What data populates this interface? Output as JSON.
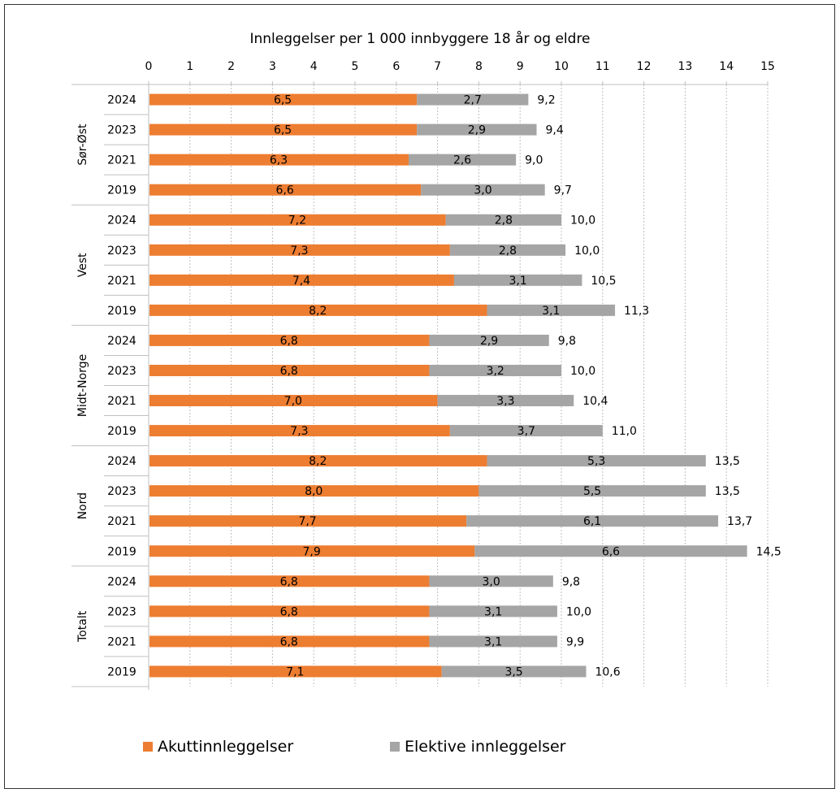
{
  "chart_data": {
    "type": "bar",
    "orientation": "horizontal",
    "stacked": true,
    "title": "Innleggelser per 1 000 innbyggere 18 år og eldre",
    "xlim": [
      0,
      15
    ],
    "xticks": [
      0,
      1,
      2,
      3,
      4,
      5,
      6,
      7,
      8,
      9,
      10,
      11,
      12,
      13,
      14,
      15
    ],
    "grid": true,
    "legend_position": "bottom",
    "series": [
      {
        "name": "Akuttinnleggelser",
        "color": "#ED7D31"
      },
      {
        "name": "Elektive innleggelser",
        "color": "#A5A5A5"
      }
    ],
    "groups": [
      {
        "name": "Sør-Øst",
        "rows": [
          {
            "year": "2024",
            "acute": 6.5,
            "elective": 2.7,
            "total": "9,2",
            "acute_label": "6,5",
            "elective_label": "2,7"
          },
          {
            "year": "2023",
            "acute": 6.5,
            "elective": 2.9,
            "total": "9,4",
            "acute_label": "6,5",
            "elective_label": "2,9"
          },
          {
            "year": "2021",
            "acute": 6.3,
            "elective": 2.6,
            "total": "9,0",
            "acute_label": "6,3",
            "elective_label": "2,6"
          },
          {
            "year": "2019",
            "acute": 6.6,
            "elective": 3.0,
            "total": "9,7",
            "acute_label": "6,6",
            "elective_label": "3,0"
          }
        ]
      },
      {
        "name": "Vest",
        "rows": [
          {
            "year": "2024",
            "acute": 7.2,
            "elective": 2.8,
            "total": "10,0",
            "acute_label": "7,2",
            "elective_label": "2,8"
          },
          {
            "year": "2023",
            "acute": 7.3,
            "elective": 2.8,
            "total": "10,0",
            "acute_label": "7,3",
            "elective_label": "2,8"
          },
          {
            "year": "2021",
            "acute": 7.4,
            "elective": 3.1,
            "total": "10,5",
            "acute_label": "7,4",
            "elective_label": "3,1"
          },
          {
            "year": "2019",
            "acute": 8.2,
            "elective": 3.1,
            "total": "11,3",
            "acute_label": "8,2",
            "elective_label": "3,1"
          }
        ]
      },
      {
        "name": "Midt-Norge",
        "rows": [
          {
            "year": "2024",
            "acute": 6.8,
            "elective": 2.9,
            "total": "9,8",
            "acute_label": "6,8",
            "elective_label": "2,9"
          },
          {
            "year": "2023",
            "acute": 6.8,
            "elective": 3.2,
            "total": "10,0",
            "acute_label": "6,8",
            "elective_label": "3,2"
          },
          {
            "year": "2021",
            "acute": 7.0,
            "elective": 3.3,
            "total": "10,4",
            "acute_label": "7,0",
            "elective_label": "3,3"
          },
          {
            "year": "2019",
            "acute": 7.3,
            "elective": 3.7,
            "total": "11,0",
            "acute_label": "7,3",
            "elective_label": "3,7"
          }
        ]
      },
      {
        "name": "Nord",
        "rows": [
          {
            "year": "2024",
            "acute": 8.2,
            "elective": 5.3,
            "total": "13,5",
            "acute_label": "8,2",
            "elective_label": "5,3"
          },
          {
            "year": "2023",
            "acute": 8.0,
            "elective": 5.5,
            "total": "13,5",
            "acute_label": "8,0",
            "elective_label": "5,5"
          },
          {
            "year": "2021",
            "acute": 7.7,
            "elective": 6.1,
            "total": "13,7",
            "acute_label": "7,7",
            "elective_label": "6,1"
          },
          {
            "year": "2019",
            "acute": 7.9,
            "elective": 6.6,
            "total": "14,5",
            "acute_label": "7,9",
            "elective_label": "6,6"
          }
        ]
      },
      {
        "name": "Totalt",
        "rows": [
          {
            "year": "2024",
            "acute": 6.8,
            "elective": 3.0,
            "total": "9,8",
            "acute_label": "6,8",
            "elective_label": "3,0"
          },
          {
            "year": "2023",
            "acute": 6.8,
            "elective": 3.1,
            "total": "10,0",
            "acute_label": "6,8",
            "elective_label": "3,1"
          },
          {
            "year": "2021",
            "acute": 6.8,
            "elective": 3.1,
            "total": "9,9",
            "acute_label": "6,8",
            "elective_label": "3,1"
          },
          {
            "year": "2019",
            "acute": 7.1,
            "elective": 3.5,
            "total": "10,6",
            "acute_label": "7,1",
            "elective_label": "3,5"
          }
        ]
      }
    ]
  }
}
